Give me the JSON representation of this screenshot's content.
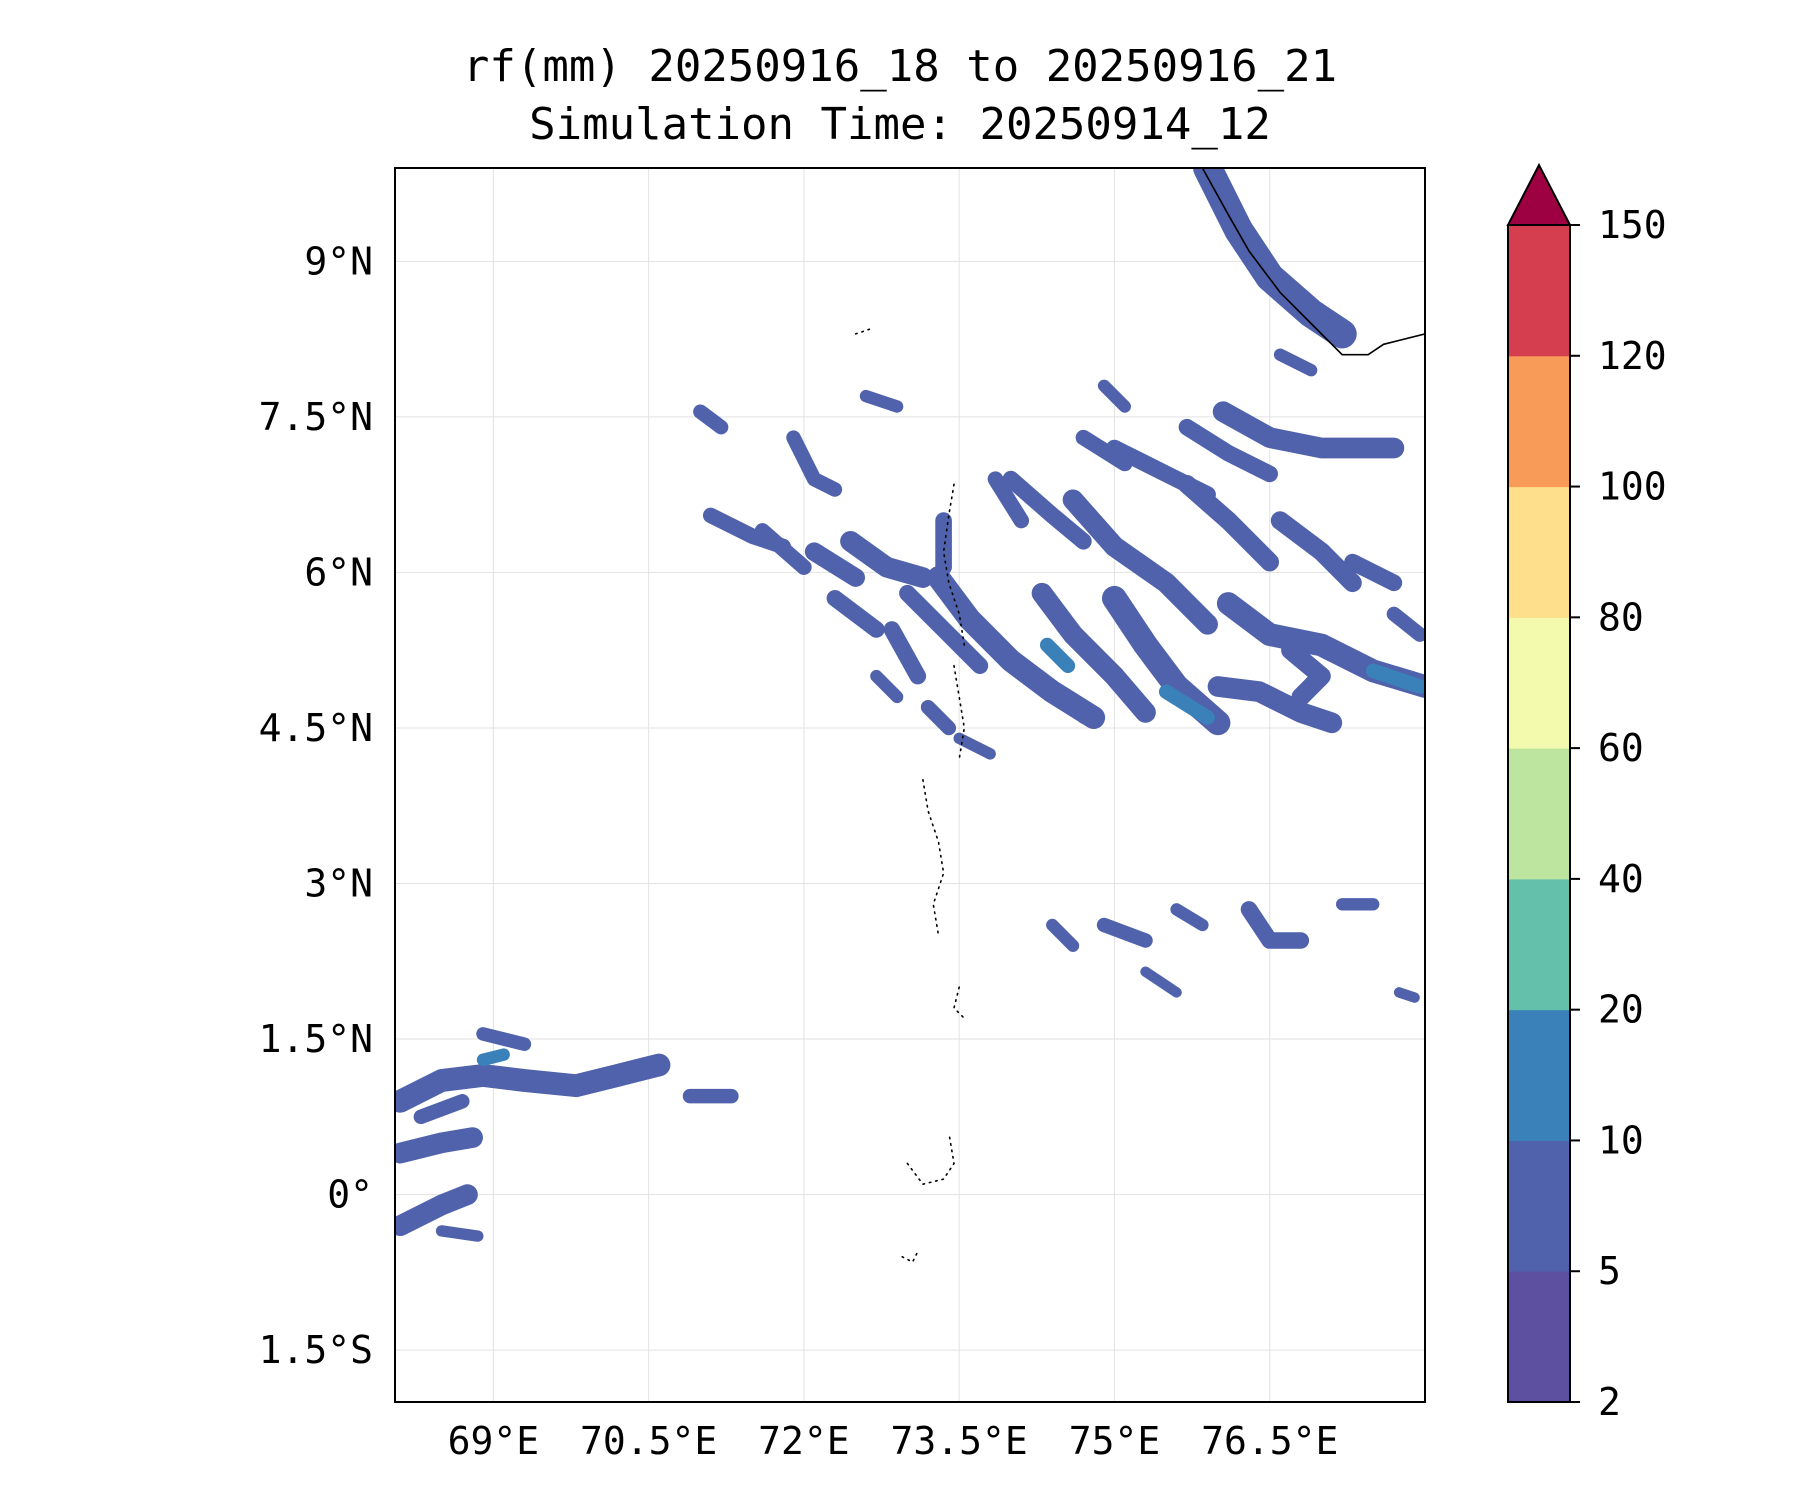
{
  "title": {
    "line1": "rf(mm) 20250916_18 to 20250916_21",
    "line2": "Simulation Time: 20250914_12"
  },
  "map": {
    "lon_range": [
      68.05,
      78.0
    ],
    "lat_range": [
      -2.0,
      9.9
    ],
    "x_ticks": [
      {
        "value": 69.0,
        "label": "69°E"
      },
      {
        "value": 70.5,
        "label": "70.5°E"
      },
      {
        "value": 72.0,
        "label": "72°E"
      },
      {
        "value": 73.5,
        "label": "73.5°E"
      },
      {
        "value": 75.0,
        "label": "75°E"
      },
      {
        "value": 76.5,
        "label": "76.5°E"
      }
    ],
    "y_ticks": [
      {
        "value": 9.0,
        "label": "9°N"
      },
      {
        "value": 7.5,
        "label": "7.5°N"
      },
      {
        "value": 6.0,
        "label": "6°N"
      },
      {
        "value": 4.5,
        "label": "4.5°N"
      },
      {
        "value": 3.0,
        "label": "3°N"
      },
      {
        "value": 1.5,
        "label": "1.5°N"
      },
      {
        "value": 0.0,
        "label": "0°"
      },
      {
        "value": -1.5,
        "label": "1.5°S"
      }
    ],
    "gridlines": true,
    "rain_bands": [
      {
        "level": 5,
        "w": 0.28,
        "pts": [
          [
            75.9,
            9.9
          ],
          [
            76.2,
            9.3
          ],
          [
            76.5,
            8.85
          ],
          [
            76.9,
            8.5
          ],
          [
            77.2,
            8.3
          ]
        ]
      },
      {
        "level": 5,
        "w": 0.12,
        "pts": [
          [
            76.6,
            8.1
          ],
          [
            76.9,
            7.95
          ]
        ]
      },
      {
        "level": 5,
        "w": 0.2,
        "pts": [
          [
            76.05,
            7.55
          ],
          [
            76.5,
            7.3
          ],
          [
            77.0,
            7.2
          ],
          [
            77.7,
            7.2
          ]
        ]
      },
      {
        "level": 5,
        "w": 0.16,
        "pts": [
          [
            75.7,
            7.4
          ],
          [
            76.1,
            7.15
          ],
          [
            76.5,
            6.95
          ]
        ]
      },
      {
        "level": 5,
        "w": 0.22,
        "pts": [
          [
            73.3,
            5.95
          ],
          [
            73.6,
            5.55
          ],
          [
            74.0,
            5.15
          ],
          [
            74.4,
            4.85
          ],
          [
            74.8,
            4.6
          ]
        ]
      },
      {
        "level": 5,
        "w": 0.2,
        "pts": [
          [
            74.3,
            5.8
          ],
          [
            74.6,
            5.4
          ],
          [
            75.0,
            5.0
          ],
          [
            75.3,
            4.65
          ]
        ]
      },
      {
        "level": 10,
        "w": 0.14,
        "pts": [
          [
            74.35,
            5.3
          ],
          [
            74.55,
            5.1
          ]
        ]
      },
      {
        "level": 5,
        "w": 0.24,
        "pts": [
          [
            75.0,
            5.75
          ],
          [
            75.3,
            5.3
          ],
          [
            75.6,
            4.9
          ],
          [
            76.0,
            4.55
          ]
        ]
      },
      {
        "level": 10,
        "w": 0.14,
        "pts": [
          [
            75.5,
            4.85
          ],
          [
            75.9,
            4.6
          ]
        ]
      },
      {
        "level": 5,
        "w": 0.22,
        "pts": [
          [
            76.1,
            5.7
          ],
          [
            76.5,
            5.4
          ],
          [
            77.0,
            5.3
          ],
          [
            77.5,
            5.05
          ],
          [
            78.0,
            4.9
          ]
        ]
      },
      {
        "level": 10,
        "w": 0.14,
        "pts": [
          [
            77.5,
            5.05
          ],
          [
            77.95,
            4.9
          ]
        ]
      },
      {
        "level": 5,
        "w": 0.2,
        "pts": [
          [
            76.0,
            4.9
          ],
          [
            76.4,
            4.85
          ],
          [
            76.8,
            4.65
          ],
          [
            77.1,
            4.55
          ]
        ]
      },
      {
        "level": 5,
        "w": 0.18,
        "pts": [
          [
            76.7,
            5.25
          ],
          [
            77.0,
            5.0
          ],
          [
            76.8,
            4.8
          ]
        ]
      },
      {
        "level": 5,
        "w": 0.2,
        "pts": [
          [
            74.6,
            6.7
          ],
          [
            75.0,
            6.25
          ],
          [
            75.5,
            5.9
          ],
          [
            75.9,
            5.5
          ]
        ]
      },
      {
        "level": 5,
        "w": 0.18,
        "pts": [
          [
            75.7,
            6.85
          ],
          [
            76.1,
            6.5
          ],
          [
            76.5,
            6.1
          ]
        ]
      },
      {
        "level": 5,
        "w": 0.18,
        "pts": [
          [
            76.6,
            6.5
          ],
          [
            77.0,
            6.2
          ],
          [
            77.3,
            5.9
          ]
        ]
      },
      {
        "level": 5,
        "w": 0.16,
        "pts": [
          [
            77.3,
            6.1
          ],
          [
            77.7,
            5.9
          ]
        ]
      },
      {
        "level": 5,
        "w": 0.16,
        "pts": [
          [
            74.0,
            6.9
          ],
          [
            74.4,
            6.55
          ],
          [
            74.7,
            6.3
          ]
        ]
      },
      {
        "level": 5,
        "w": 0.16,
        "pts": [
          [
            75.0,
            7.2
          ],
          [
            75.5,
            6.95
          ],
          [
            75.9,
            6.75
          ]
        ]
      },
      {
        "level": 5,
        "w": 0.15,
        "pts": [
          [
            74.7,
            7.3
          ],
          [
            75.1,
            7.05
          ]
        ]
      },
      {
        "level": 5,
        "w": 0.2,
        "pts": [
          [
            72.45,
            6.3
          ],
          [
            72.8,
            6.05
          ],
          [
            73.15,
            5.95
          ]
        ]
      },
      {
        "level": 5,
        "w": 0.18,
        "pts": [
          [
            72.1,
            6.2
          ],
          [
            72.5,
            5.95
          ]
        ]
      },
      {
        "level": 5,
        "w": 0.16,
        "pts": [
          [
            73.0,
            5.8
          ],
          [
            73.4,
            5.4
          ],
          [
            73.7,
            5.1
          ]
        ]
      },
      {
        "level": 5,
        "w": 0.16,
        "pts": [
          [
            72.3,
            5.75
          ],
          [
            72.7,
            5.45
          ]
        ]
      },
      {
        "level": 5,
        "w": 0.16,
        "pts": [
          [
            72.85,
            5.45
          ],
          [
            73.1,
            5.0
          ]
        ]
      },
      {
        "level": 5,
        "w": 0.16,
        "pts": [
          [
            73.35,
            6.5
          ],
          [
            73.35,
            6.05
          ]
        ]
      },
      {
        "level": 5,
        "w": 0.15,
        "pts": [
          [
            73.85,
            6.9
          ],
          [
            74.1,
            6.5
          ]
        ]
      },
      {
        "level": 5,
        "w": 0.15,
        "pts": [
          [
            71.1,
            6.55
          ],
          [
            71.5,
            6.35
          ],
          [
            71.8,
            6.25
          ]
        ]
      },
      {
        "level": 5,
        "w": 0.15,
        "pts": [
          [
            71.6,
            6.4
          ],
          [
            72.0,
            6.05
          ]
        ]
      },
      {
        "level": 5,
        "w": 0.14,
        "pts": [
          [
            71.9,
            7.3
          ],
          [
            72.1,
            6.9
          ],
          [
            72.3,
            6.8
          ]
        ]
      },
      {
        "level": 5,
        "w": 0.14,
        "pts": [
          [
            71.0,
            7.55
          ],
          [
            71.2,
            7.4
          ]
        ]
      },
      {
        "level": 5,
        "w": 0.12,
        "pts": [
          [
            72.6,
            7.7
          ],
          [
            72.9,
            7.6
          ]
        ]
      },
      {
        "level": 5,
        "w": 0.12,
        "pts": [
          [
            74.4,
            4.9
          ],
          [
            74.7,
            4.6
          ]
        ]
      },
      {
        "level": 5,
        "w": 0.11,
        "pts": [
          [
            73.5,
            4.4
          ],
          [
            73.8,
            4.25
          ]
        ]
      },
      {
        "level": 5,
        "w": 0.14,
        "pts": [
          [
            73.2,
            4.7
          ],
          [
            73.4,
            4.5
          ]
        ]
      },
      {
        "level": 5,
        "w": 0.12,
        "pts": [
          [
            72.7,
            5.0
          ],
          [
            72.9,
            4.8
          ]
        ]
      },
      {
        "level": 5,
        "w": 0.12,
        "pts": [
          [
            74.9,
            7.8
          ],
          [
            75.1,
            7.6
          ]
        ]
      },
      {
        "level": 5,
        "w": 0.14,
        "pts": [
          [
            77.7,
            5.6
          ],
          [
            77.95,
            5.4
          ]
        ]
      },
      {
        "level": 5,
        "w": 0.14,
        "pts": [
          [
            74.9,
            2.6
          ],
          [
            75.3,
            2.45
          ]
        ]
      },
      {
        "level": 5,
        "w": 0.12,
        "pts": [
          [
            74.4,
            2.6
          ],
          [
            74.6,
            2.4
          ]
        ]
      },
      {
        "level": 5,
        "w": 0.12,
        "pts": [
          [
            75.6,
            2.75
          ],
          [
            75.85,
            2.6
          ]
        ]
      },
      {
        "level": 5,
        "w": 0.16,
        "pts": [
          [
            76.3,
            2.75
          ],
          [
            76.5,
            2.45
          ],
          [
            76.8,
            2.45
          ]
        ]
      },
      {
        "level": 5,
        "w": 0.12,
        "pts": [
          [
            77.2,
            2.8
          ],
          [
            77.5,
            2.8
          ]
        ]
      },
      {
        "level": 5,
        "w": 0.1,
        "pts": [
          [
            77.75,
            1.95
          ],
          [
            77.9,
            1.9
          ]
        ]
      },
      {
        "level": 5,
        "w": 0.1,
        "pts": [
          [
            75.3,
            2.15
          ],
          [
            75.6,
            1.95
          ]
        ]
      },
      {
        "level": 5,
        "w": 0.22,
        "pts": [
          [
            68.1,
            0.9
          ],
          [
            68.5,
            1.1
          ],
          [
            68.9,
            1.15
          ],
          [
            69.3,
            1.1
          ],
          [
            69.8,
            1.05
          ],
          [
            70.2,
            1.15
          ],
          [
            70.6,
            1.25
          ]
        ]
      },
      {
        "level": 10,
        "w": 0.12,
        "pts": [
          [
            68.9,
            1.3
          ],
          [
            69.1,
            1.35
          ]
        ]
      },
      {
        "level": 5,
        "w": 0.2,
        "pts": [
          [
            68.1,
            0.4
          ],
          [
            68.5,
            0.5
          ],
          [
            68.8,
            0.55
          ]
        ]
      },
      {
        "level": 5,
        "w": 0.2,
        "pts": [
          [
            68.1,
            -0.3
          ],
          [
            68.5,
            -0.1
          ],
          [
            68.75,
            0.0
          ]
        ]
      },
      {
        "level": 5,
        "w": 0.14,
        "pts": [
          [
            68.3,
            0.75
          ],
          [
            68.7,
            0.9
          ]
        ]
      },
      {
        "level": 5,
        "w": 0.13,
        "pts": [
          [
            68.9,
            1.55
          ],
          [
            69.3,
            1.45
          ]
        ]
      },
      {
        "level": 5,
        "w": 0.14,
        "pts": [
          [
            70.9,
            0.95
          ],
          [
            71.3,
            0.95
          ]
        ]
      },
      {
        "level": 5,
        "w": 0.11,
        "pts": [
          [
            68.5,
            -0.35
          ],
          [
            68.85,
            -0.4
          ]
        ]
      }
    ],
    "coastline": [
      [
        75.85,
        9.9
      ],
      [
        76.1,
        9.45
      ],
      [
        76.3,
        9.1
      ],
      [
        76.6,
        8.7
      ],
      [
        76.9,
        8.4
      ],
      [
        77.2,
        8.1
      ],
      [
        77.45,
        8.1
      ],
      [
        77.6,
        8.2
      ],
      [
        78.0,
        8.3
      ]
    ],
    "islands": [
      [
        [
          73.45,
          6.85
        ],
        [
          73.4,
          6.55
        ],
        [
          73.35,
          6.2
        ],
        [
          73.4,
          5.9
        ],
        [
          73.5,
          5.6
        ],
        [
          73.55,
          5.3
        ]
      ],
      [
        [
          73.45,
          5.1
        ],
        [
          73.5,
          4.8
        ],
        [
          73.55,
          4.5
        ],
        [
          73.5,
          4.2
        ]
      ],
      [
        [
          73.15,
          4.0
        ],
        [
          73.2,
          3.7
        ],
        [
          73.3,
          3.4
        ],
        [
          73.35,
          3.1
        ],
        [
          73.25,
          2.8
        ],
        [
          73.3,
          2.5
        ]
      ],
      [
        [
          73.5,
          2.0
        ],
        [
          73.45,
          1.8
        ],
        [
          73.55,
          1.7
        ]
      ],
      [
        [
          73.0,
          0.3
        ],
        [
          73.15,
          0.1
        ],
        [
          73.35,
          0.15
        ],
        [
          73.45,
          0.3
        ],
        [
          73.4,
          0.6
        ]
      ],
      [
        [
          72.95,
          -0.6
        ],
        [
          73.05,
          -0.65
        ],
        [
          73.1,
          -0.55
        ]
      ],
      [
        [
          72.5,
          8.3
        ],
        [
          72.65,
          8.35
        ]
      ]
    ]
  },
  "colorbar": {
    "levels": [
      2,
      5,
      10,
      20,
      40,
      60,
      80,
      100,
      120,
      150
    ],
    "labels": [
      "2",
      "5",
      "10",
      "20",
      "40",
      "60",
      "80",
      "100",
      "120",
      "150"
    ],
    "colors": [
      "#5e50a1",
      "#4f62ab",
      "#3a81ba",
      "#64bfab",
      "#bde5a0",
      "#f3faae",
      "#fddf8c",
      "#f99b58",
      "#d53e4f"
    ],
    "extend_color": "#9e0142"
  }
}
